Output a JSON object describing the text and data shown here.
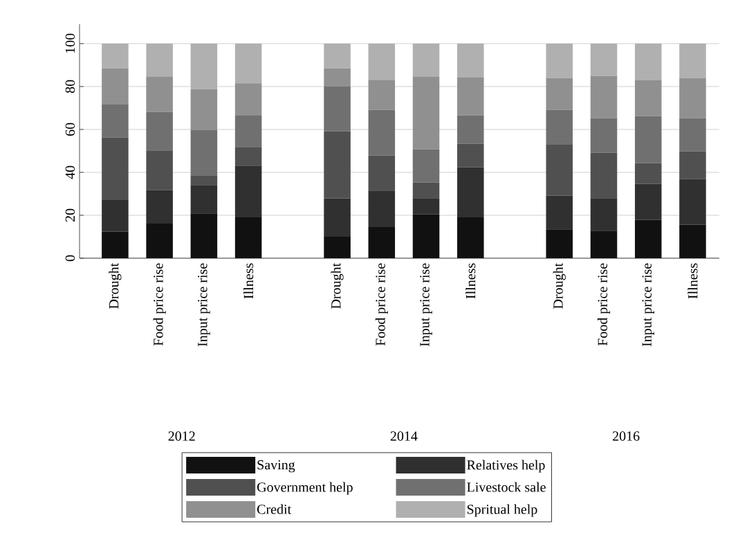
{
  "chart_data": {
    "type": "bar",
    "stacked": true,
    "categories": [
      "Drought",
      "Food price rise",
      "Input price rise",
      "Illness",
      null,
      "Drought",
      "Food price rise",
      "Input price rise",
      "Illness",
      null,
      "Drought",
      "Food price rise",
      "Input price rise",
      "Illness"
    ],
    "series": [
      {
        "name": "Saving",
        "color": "#111111",
        "values": [
          12.4,
          16.1,
          20.9,
          19.0,
          null,
          10.0,
          14.5,
          20.4,
          19.0,
          null,
          13.5,
          12.8,
          17.9,
          15.6
        ]
      },
      {
        "name": "Relatives help",
        "color": "#303030",
        "values": [
          14.7,
          15.6,
          13.2,
          24.1,
          null,
          17.9,
          17.0,
          7.6,
          23.4,
          null,
          15.7,
          15.2,
          16.8,
          21.3
        ]
      },
      {
        "name": "Government help",
        "color": "#505050",
        "values": [
          29.2,
          18.5,
          4.5,
          8.7,
          null,
          31.3,
          16.3,
          7.3,
          10.9,
          null,
          23.9,
          21.1,
          9.6,
          12.9
        ]
      },
      {
        "name": "Livestock sale",
        "color": "#707070",
        "values": [
          15.3,
          18.0,
          21.2,
          14.9,
          null,
          20.9,
          21.3,
          15.4,
          13.2,
          null,
          16.0,
          16.1,
          21.9,
          15.4
        ]
      },
      {
        "name": "Credit",
        "color": "#909090",
        "values": [
          16.8,
          16.3,
          19.0,
          14.8,
          null,
          8.3,
          14.0,
          33.8,
          17.7,
          null,
          14.8,
          19.7,
          16.7,
          18.7
        ]
      },
      {
        "name": "Spritual help",
        "color": "#b0b0b0",
        "values": [
          11.6,
          15.5,
          21.2,
          18.5,
          null,
          11.6,
          16.9,
          15.5,
          15.8,
          null,
          16.1,
          15.1,
          17.1,
          16.1
        ]
      }
    ],
    "annotations": [
      "2012",
      "2014",
      "2016"
    ],
    "ylim": [
      0,
      109
    ],
    "yticks": [
      0,
      20,
      40,
      60,
      80,
      100
    ],
    "grid": "y",
    "legend": "bottom"
  }
}
